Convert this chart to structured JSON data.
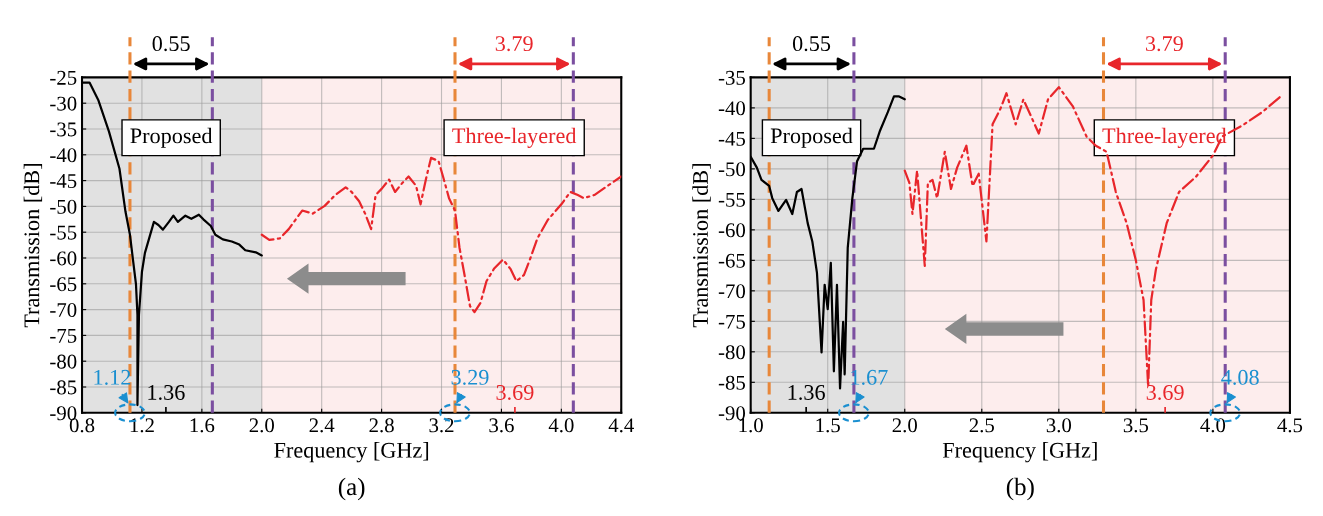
{
  "chart_data": [
    {
      "type": "line",
      "title": "(a)",
      "xlabel": "Frequency [GHz]",
      "ylabel": "Transmission [dB]",
      "xlim": [
        0.8,
        4.4
      ],
      "ylim": [
        -90,
        -25
      ],
      "xticks": [
        0.8,
        1.2,
        1.6,
        {
          "value": 2.0,
          "label": "2.0"
        },
        2.4,
        2.8,
        3.2,
        3.6,
        {
          "value": 4.0,
          "label": "4.0"
        },
        4.4
      ],
      "yticks": [
        -90,
        -85,
        -80,
        -75,
        -70,
        -65,
        -60,
        -55,
        -50,
        -45,
        -40,
        -35,
        -30,
        -25
      ],
      "grid": true,
      "series": [
        {
          "name": "Proposed",
          "color": "#000000",
          "line_style": "solid",
          "x": [
            0.8,
            0.85,
            0.91,
            0.98,
            1.05,
            1.09,
            1.12,
            1.14,
            1.16,
            1.17,
            1.17,
            1.18,
            1.2,
            1.22,
            1.25,
            1.28,
            1.31,
            1.34,
            1.38,
            1.41,
            1.44,
            1.49,
            1.53,
            1.58,
            1.61,
            1.66,
            1.69,
            1.74,
            1.8,
            1.85,
            1.89,
            1.96,
            2.0
          ],
          "values": [
            -26,
            -26,
            -29.5,
            -35.5,
            -42.7,
            -51,
            -55.5,
            -60.3,
            -65,
            -71,
            -88.5,
            -71,
            -62.7,
            -59,
            -56,
            -53,
            -53.6,
            -54.5,
            -53,
            -51.8,
            -53,
            -51.8,
            -52.4,
            -51.6,
            -52.5,
            -53.8,
            -55.5,
            -56.4,
            -56.8,
            -57.4,
            -58.5,
            -58.9,
            -59.5
          ]
        },
        {
          "name": "Three-layered",
          "color": "#e8262b",
          "line_style": "dashdot",
          "x": [
            2.0,
            2.05,
            2.12,
            2.18,
            2.27,
            2.34,
            2.42,
            2.49,
            2.56,
            2.6,
            2.65,
            2.69,
            2.73,
            2.76,
            2.8,
            2.85,
            2.89,
            2.94,
            2.98,
            3.03,
            3.06,
            3.1,
            3.13,
            3.18,
            3.21,
            3.25,
            3.29,
            3.32,
            3.35,
            3.39,
            3.42,
            3.46,
            3.5,
            3.55,
            3.61,
            3.66,
            3.7,
            3.75,
            3.79,
            3.84,
            3.91,
            4.0,
            4.06,
            4.11,
            4.15,
            4.22,
            4.31,
            4.4
          ],
          "values": [
            -55.5,
            -56.5,
            -56.2,
            -54.4,
            -50.8,
            -51.4,
            -49.9,
            -47.8,
            -46.3,
            -47.2,
            -49,
            -51.4,
            -54.4,
            -47.8,
            -46.6,
            -44.8,
            -47.2,
            -45.4,
            -44.2,
            -46,
            -49.6,
            -44.2,
            -40.6,
            -41.2,
            -44.2,
            -48.4,
            -50.8,
            -58,
            -62.7,
            -69.3,
            -70.5,
            -68.7,
            -64.5,
            -62.1,
            -60.3,
            -62.1,
            -64.5,
            -63.3,
            -60.3,
            -56.2,
            -52.6,
            -49.6,
            -47.2,
            -47.8,
            -48.4,
            -47.8,
            -46,
            -44.2
          ]
        }
      ],
      "ref_lines": [
        {
          "axis": "x",
          "value": 1.12,
          "color": "#e8873a",
          "line_style": "dashed"
        },
        {
          "axis": "x",
          "value": 1.67,
          "color": "#7b4fa0",
          "line_style": "dashed"
        },
        {
          "axis": "x",
          "value": 3.29,
          "color": "#e8873a",
          "line_style": "dashed"
        },
        {
          "axis": "x",
          "value": 4.08,
          "color": "#7b4fa0",
          "line_style": "dashed"
        }
      ],
      "bands": [
        {
          "axis": "x",
          "from": 0.8,
          "to": 2.0,
          "color": "#c8c8c8"
        },
        {
          "axis": "x",
          "from": 2.0,
          "to": 4.4,
          "color": "#fbdede"
        }
      ],
      "annotations": [
        "0.55",
        "3.79",
        {
          "text": "1.12",
          "x": 1.12,
          "y": -90
        },
        {
          "text": "1.36",
          "x": 1.36,
          "y": -90
        },
        {
          "text": "3.29",
          "x": 3.29,
          "y": -90
        },
        {
          "text": "3.69",
          "x": 3.69,
          "y": -90
        }
      ]
    },
    {
      "type": "line",
      "title": "(b)",
      "xlabel": "Frequency [GHz]",
      "ylabel": "Transmission [dB]",
      "xlim": [
        1.0,
        4.5
      ],
      "ylim": [
        -90,
        -35
      ],
      "xticks": [
        {
          "value": 1.0,
          "label": "1.0"
        },
        1.5,
        {
          "value": 2.0,
          "label": "2.0"
        },
        2.5,
        {
          "value": 3.0,
          "label": "3.0"
        },
        3.5,
        {
          "value": 4.0,
          "label": "4.0"
        },
        4.5
      ],
      "yticks": [
        -90,
        -85,
        -80,
        -75,
        -70,
        -65,
        -60,
        -55,
        -50,
        -45,
        -40,
        -35
      ],
      "grid": true,
      "series": [
        {
          "name": "Proposed",
          "color": "#000000",
          "line_style": "solid",
          "x": [
            1.0,
            1.04,
            1.07,
            1.12,
            1.14,
            1.18,
            1.23,
            1.27,
            1.3,
            1.33,
            1.37,
            1.4,
            1.43,
            1.46,
            1.48,
            1.5,
            1.52,
            1.54,
            1.56,
            1.58,
            1.6,
            1.61,
            1.63,
            1.66,
            1.69,
            1.73,
            1.8,
            1.84,
            1.89,
            1.93,
            1.96,
            2.0
          ],
          "values": [
            -48,
            -49.8,
            -51.8,
            -52.8,
            -54.8,
            -56.9,
            -55.1,
            -57.4,
            -53.8,
            -53.3,
            -58.9,
            -61.9,
            -67,
            -80.1,
            -69,
            -73,
            -65.4,
            -83.2,
            -69,
            -86,
            -75.1,
            -83.7,
            -62.9,
            -54.8,
            -48.8,
            -46.7,
            -46.7,
            -43.7,
            -40.7,
            -38.1,
            -38.1,
            -38.6
          ]
        },
        {
          "name": "Three-layered",
          "color": "#e8262b",
          "line_style": "dashdot",
          "x": [
            2.0,
            2.03,
            2.05,
            2.08,
            2.13,
            2.15,
            2.18,
            2.21,
            2.26,
            2.3,
            2.34,
            2.4,
            2.44,
            2.48,
            2.53,
            2.57,
            2.62,
            2.66,
            2.72,
            2.77,
            2.87,
            2.93,
            3.0,
            3.09,
            3.18,
            3.24,
            3.31,
            3.37,
            3.44,
            3.5,
            3.55,
            3.58,
            3.6,
            3.63,
            3.7,
            3.78,
            3.89,
            4.0,
            4.06,
            4.19,
            4.32,
            4.45
          ],
          "values": [
            -50.3,
            -52.3,
            -57.4,
            -50.3,
            -65.9,
            -52.3,
            -51.8,
            -54.8,
            -47.2,
            -53.3,
            -49.8,
            -46.2,
            -52.8,
            -50.8,
            -61.9,
            -42.7,
            -40.2,
            -37.6,
            -42.7,
            -38.6,
            -44.2,
            -38.6,
            -36.6,
            -39.7,
            -44.7,
            -46.2,
            -47.2,
            -53.8,
            -58.9,
            -65,
            -71.5,
            -85.7,
            -71.5,
            -66.5,
            -58.9,
            -53.8,
            -51.3,
            -47.8,
            -44.7,
            -42.9,
            -40.7,
            -37.9
          ]
        }
      ],
      "ref_lines": [
        {
          "axis": "x",
          "value": 1.12,
          "color": "#e8873a",
          "line_style": "dashed"
        },
        {
          "axis": "x",
          "value": 1.67,
          "color": "#7b4fa0",
          "line_style": "dashed"
        },
        {
          "axis": "x",
          "value": 3.29,
          "color": "#e8873a",
          "line_style": "dashed"
        },
        {
          "axis": "x",
          "value": 4.08,
          "color": "#7b4fa0",
          "line_style": "dashed"
        }
      ],
      "bands": [
        {
          "axis": "x",
          "from": 1.0,
          "to": 2.0,
          "color": "#c8c8c8"
        },
        {
          "axis": "x",
          "from": 2.0,
          "to": 4.5,
          "color": "#fbdede"
        }
      ],
      "annotations": [
        "0.55",
        "3.79",
        {
          "text": "1.36",
          "x": 1.36,
          "y": -90
        },
        {
          "text": "1.67",
          "x": 1.67,
          "y": -90
        },
        {
          "text": "3.69",
          "x": 3.69,
          "y": -90
        },
        {
          "text": "4.08",
          "x": 4.08,
          "y": -90
        }
      ]
    }
  ]
}
